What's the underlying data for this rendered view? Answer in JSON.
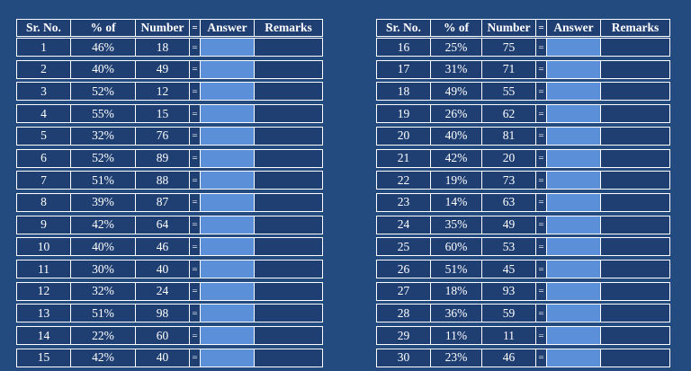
{
  "tables": [
    {
      "header": [
        "Sr. No.",
        "% of",
        "Number",
        "=",
        "Answer",
        "Remarks"
      ],
      "rows": [
        [
          "1",
          "46%",
          "18",
          "="
        ],
        [
          "2",
          "40%",
          "49",
          "="
        ],
        [
          "3",
          "52%",
          "12",
          "="
        ],
        [
          "4",
          "55%",
          "15",
          "="
        ],
        [
          "5",
          "32%",
          "76",
          "="
        ],
        [
          "6",
          "52%",
          "89",
          "="
        ],
        [
          "7",
          "51%",
          "88",
          "="
        ],
        [
          "8",
          "39%",
          "87",
          "="
        ],
        [
          "9",
          "42%",
          "64",
          "="
        ],
        [
          "10",
          "40%",
          "46",
          "="
        ],
        [
          "11",
          "30%",
          "40",
          "="
        ],
        [
          "12",
          "32%",
          "24",
          "="
        ],
        [
          "13",
          "51%",
          "98",
          "="
        ],
        [
          "14",
          "22%",
          "60",
          "="
        ],
        [
          "15",
          "42%",
          "40",
          "="
        ]
      ]
    },
    {
      "header": [
        "Sr. No.",
        "% of",
        "Number",
        "=",
        "Answer",
        "Remarks"
      ],
      "rows": [
        [
          "16",
          "25%",
          "75",
          "="
        ],
        [
          "17",
          "31%",
          "71",
          "="
        ],
        [
          "18",
          "49%",
          "55",
          "="
        ],
        [
          "19",
          "26%",
          "62",
          "="
        ],
        [
          "20",
          "40%",
          "81",
          "="
        ],
        [
          "21",
          "42%",
          "20",
          "="
        ],
        [
          "22",
          "19%",
          "73",
          "="
        ],
        [
          "23",
          "14%",
          "63",
          "="
        ],
        [
          "24",
          "35%",
          "49",
          "="
        ],
        [
          "25",
          "60%",
          "53",
          "="
        ],
        [
          "26",
          "51%",
          "45",
          "="
        ],
        [
          "27",
          "18%",
          "93",
          "="
        ],
        [
          "28",
          "36%",
          "59",
          "="
        ],
        [
          "29",
          "11%",
          "11",
          "="
        ],
        [
          "30",
          "23%",
          "46",
          "="
        ]
      ]
    }
  ]
}
